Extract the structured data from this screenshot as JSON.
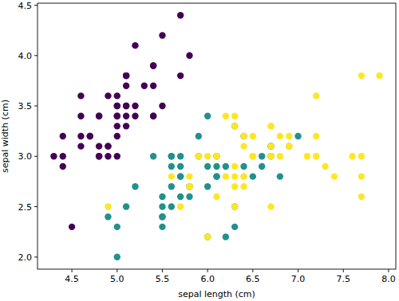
{
  "chart_data": {
    "type": "scatter",
    "x_label": "sepal length (cm)",
    "y_label": "sepal width (cm)",
    "xlim": [
      4.12,
      8.08
    ],
    "ylim": [
      1.88,
      4.52
    ],
    "xticks": [
      4.5,
      {
        "value": 5,
        "label": "5.0"
      },
      5.5,
      {
        "value": 6,
        "label": "6.0"
      },
      6.5,
      {
        "value": 7,
        "label": "7.0"
      },
      7.5,
      {
        "value": 8,
        "label": "8.0"
      }
    ],
    "yticks": [
      {
        "value": 2,
        "label": "2.0"
      },
      2.5,
      {
        "value": 3,
        "label": "3.0"
      },
      3.5,
      {
        "value": 4,
        "label": "4.0"
      },
      4.5
    ],
    "grid": false,
    "marker": "circle",
    "series": [
      {
        "color": "#440154",
        "x": [
          5.1,
          4.9,
          4.7,
          4.6,
          5.0,
          5.4,
          4.6,
          5.0,
          4.4,
          4.9,
          5.4,
          4.8,
          4.8,
          4.3,
          5.8,
          5.7,
          5.4,
          5.1,
          5.7,
          5.1,
          5.4,
          5.1,
          4.6,
          5.1,
          4.8,
          5.0,
          5.0,
          5.2,
          5.2,
          4.7,
          4.8,
          5.4,
          5.2,
          5.5,
          4.9,
          5.0,
          5.5,
          4.9,
          4.4,
          5.1,
          5.0,
          4.5,
          4.4,
          5.0,
          5.1,
          4.8,
          5.1,
          4.6,
          5.3,
          5.0
        ],
        "values": [
          3.5,
          3.0,
          3.2,
          3.1,
          3.6,
          3.9,
          3.4,
          3.4,
          2.9,
          3.1,
          3.7,
          3.4,
          3.0,
          3.0,
          4.0,
          4.4,
          3.9,
          3.5,
          3.8,
          3.8,
          3.4,
          3.7,
          3.6,
          3.3,
          3.4,
          3.0,
          3.4,
          3.5,
          3.4,
          3.2,
          3.1,
          3.4,
          4.1,
          4.2,
          3.1,
          3.2,
          3.5,
          3.6,
          3.0,
          3.4,
          3.5,
          2.3,
          3.2,
          3.5,
          3.8,
          3.0,
          3.8,
          3.2,
          3.7,
          3.3
        ]
      },
      {
        "color": "#21918c",
        "x": [
          7.0,
          6.4,
          6.9,
          5.5,
          6.5,
          5.7,
          6.3,
          4.9,
          6.6,
          5.2,
          5.0,
          5.9,
          6.0,
          6.1,
          5.6,
          6.7,
          5.6,
          5.8,
          6.2,
          5.6,
          5.9,
          6.1,
          6.3,
          6.1,
          6.4,
          6.6,
          6.8,
          6.7,
          6.0,
          5.7,
          5.5,
          5.5,
          5.8,
          6.0,
          5.4,
          6.0,
          6.7,
          6.3,
          5.6,
          5.5,
          5.5,
          6.1,
          5.8,
          5.0,
          5.6,
          5.7,
          5.7,
          6.2,
          5.1,
          5.7
        ],
        "values": [
          3.2,
          3.2,
          3.1,
          2.3,
          2.8,
          2.8,
          3.3,
          2.4,
          2.9,
          2.7,
          2.0,
          3.0,
          2.2,
          2.9,
          2.9,
          3.1,
          3.0,
          2.7,
          2.2,
          2.5,
          3.2,
          2.8,
          2.5,
          2.8,
          2.9,
          3.0,
          2.8,
          3.0,
          2.9,
          2.6,
          2.4,
          2.4,
          2.7,
          2.7,
          3.0,
          3.4,
          3.1,
          2.3,
          3.0,
          2.5,
          2.6,
          3.0,
          2.6,
          2.3,
          2.7,
          3.0,
          2.9,
          2.9,
          2.5,
          2.8
        ]
      },
      {
        "color": "#fde725",
        "x": [
          6.3,
          5.8,
          7.1,
          6.3,
          6.5,
          7.6,
          4.9,
          7.3,
          6.7,
          7.2,
          6.5,
          6.4,
          6.8,
          5.7,
          5.8,
          6.4,
          6.5,
          7.7,
          7.7,
          6.0,
          6.9,
          5.6,
          7.7,
          6.3,
          6.7,
          7.2,
          6.2,
          6.1,
          6.4,
          7.2,
          7.4,
          7.9,
          6.4,
          6.3,
          6.1,
          7.7,
          6.3,
          6.4,
          6.0,
          6.9,
          6.7,
          6.9,
          5.8,
          6.8,
          6.7,
          6.7,
          6.3,
          6.5,
          6.2,
          5.9
        ],
        "values": [
          3.3,
          2.7,
          3.0,
          2.9,
          3.0,
          3.0,
          2.5,
          2.9,
          2.5,
          3.6,
          3.2,
          2.7,
          3.0,
          2.5,
          2.8,
          3.2,
          3.0,
          3.8,
          2.6,
          2.2,
          3.2,
          2.8,
          2.8,
          2.7,
          3.3,
          3.2,
          2.8,
          3.0,
          2.8,
          3.0,
          2.8,
          3.8,
          2.8,
          2.8,
          2.6,
          3.0,
          3.4,
          3.1,
          3.0,
          3.1,
          3.1,
          3.1,
          2.7,
          3.2,
          3.3,
          3.0,
          2.5,
          3.0,
          3.4,
          3.0
        ]
      }
    ]
  }
}
